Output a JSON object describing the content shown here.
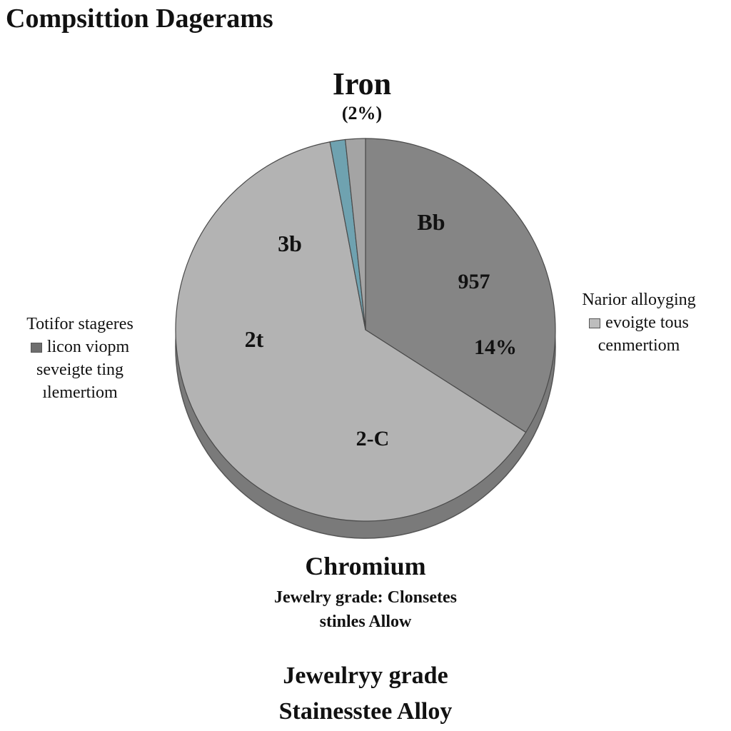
{
  "page": {
    "title": "Compsittion Dagerams"
  },
  "chart_data": {
    "type": "pie",
    "title": "Iron",
    "subtitle": "(2%)",
    "slices": [
      {
        "label": "Bb",
        "value": 34,
        "color": "#858585"
      },
      {
        "label": "2-C",
        "value": 63,
        "color": "#b3b3b3"
      },
      {
        "label": "",
        "value": 1.3,
        "color": "#6fa2b0"
      },
      {
        "label": "",
        "value": 1.7,
        "color": "#a4a4a4"
      }
    ],
    "annotations": [
      "Bb",
      "957",
      "14%",
      "3b",
      "2t",
      "2-C"
    ],
    "legend_left": {
      "title": "Totifor stageres",
      "entries": [
        {
          "label": "licon viopm",
          "color": "#6e6e6e"
        }
      ],
      "lines": [
        "seveigte ting",
        "ılemertiom"
      ]
    },
    "legend_right": {
      "title": "Narior alloyging",
      "entries": [
        {
          "label": "evoigte tous",
          "color": "#bdbdbd"
        }
      ],
      "lines": [
        "cenmertiom"
      ]
    },
    "bottom": {
      "name": "Chromium",
      "sub_line1": "Jewelry grade: Clonsetes",
      "sub_line2": "stinles Allow",
      "big_line1": "Jeweılryy grade",
      "big_line2": "Stainesstee Alloy"
    }
  }
}
